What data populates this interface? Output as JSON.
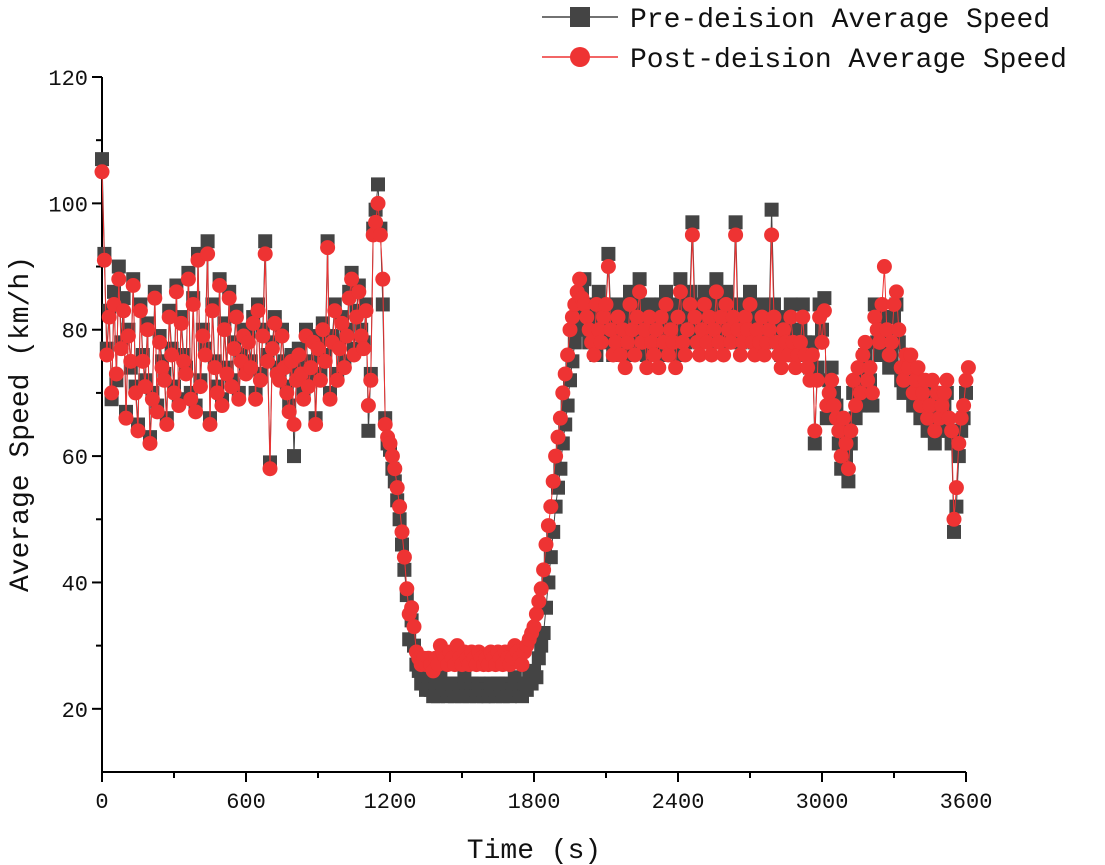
{
  "chart_data": {
    "type": "line",
    "title": "",
    "xlabel": "Time (s)",
    "ylabel": "Average Speed (km/h)",
    "xlim": [
      0,
      3600
    ],
    "ylim": [
      10,
      120
    ],
    "x_ticks": [
      0,
      600,
      1200,
      1800,
      2400,
      3000,
      3600
    ],
    "y_ticks": [
      20,
      40,
      60,
      80,
      100,
      120
    ],
    "grid": false,
    "legend_position": "top-right",
    "series": [
      {
        "name": "Pre-deision Average Speed",
        "color": "#444444",
        "marker": "square",
        "step": 10,
        "values": [
          107,
          92,
          77,
          83,
          69,
          86,
          72,
          90,
          78,
          85,
          67,
          80,
          74,
          88,
          71,
          65,
          84,
          76,
          72,
          81,
          63,
          70,
          86,
          68,
          79,
          75,
          73,
          66,
          83,
          77,
          71,
          87,
          69,
          82,
          76,
          74,
          89,
          70,
          85,
          68,
          92,
          72,
          80,
          77,
          94,
          66,
          84,
          75,
          71,
          88,
          69,
          81,
          74,
          86,
          72,
          78,
          83,
          70,
          76,
          80,
          74,
          79,
          75,
          82,
          70,
          84,
          73,
          80,
          94,
          76,
          59,
          78,
          82,
          74,
          73,
          80,
          75,
          71,
          68,
          76,
          60,
          73,
          77,
          74,
          70,
          80,
          72,
          75,
          79,
          66,
          78,
          73,
          81,
          76,
          94,
          70,
          79,
          84,
          73,
          78,
          82,
          75,
          80,
          86,
          89,
          77,
          83,
          87,
          80,
          78,
          84,
          64,
          73,
          96,
          99,
          103,
          96,
          84,
          66,
          62,
          61,
          58,
          56,
          53,
          50,
          46,
          42,
          38,
          31,
          34,
          30,
          27,
          26,
          24,
          25,
          23,
          24,
          23,
          22,
          24,
          22,
          25,
          24,
          23,
          22,
          24,
          23,
          22,
          24,
          23,
          22,
          25,
          23,
          22,
          24,
          23,
          22,
          24,
          23,
          22,
          23,
          22,
          24,
          23,
          22,
          24,
          23,
          22,
          24,
          23,
          22,
          23,
          25,
          24,
          23,
          22,
          24,
          23,
          25,
          24,
          26,
          25,
          28,
          30,
          32,
          36,
          40,
          44,
          48,
          52,
          55,
          58,
          62,
          65,
          68,
          72,
          75,
          78,
          80,
          82,
          86,
          88,
          84,
          78,
          80,
          82,
          76,
          86,
          80,
          78,
          84,
          92,
          82,
          76,
          80,
          84,
          78,
          82,
          76,
          80,
          86,
          82,
          78,
          84,
          88,
          80,
          82,
          76,
          84,
          80,
          78,
          82,
          76,
          84,
          80,
          86,
          78,
          82,
          80,
          76,
          84,
          88,
          80,
          78,
          82,
          86,
          97,
          84,
          80,
          78,
          82,
          86,
          80,
          84,
          78,
          82,
          88,
          80,
          84,
          78,
          86,
          82,
          80,
          84,
          97,
          82,
          78,
          80,
          84,
          82,
          86,
          80,
          78,
          82,
          80,
          84,
          78,
          80,
          82,
          99,
          84,
          80,
          78,
          76,
          82,
          80,
          78,
          84,
          80,
          76,
          78,
          80,
          84,
          78,
          76,
          74,
          78,
          62,
          74,
          84,
          80,
          85,
          66,
          72,
          74,
          70,
          68,
          62,
          58,
          64,
          60,
          56,
          62,
          70,
          66,
          72,
          68,
          74,
          76,
          70,
          72,
          68,
          84,
          78,
          76,
          82,
          80,
          78,
          74,
          76,
          82,
          84,
          78,
          72,
          70,
          74,
          72,
          74,
          68,
          70,
          72,
          66,
          68,
          70,
          64,
          66,
          70,
          62,
          68,
          64,
          66,
          68,
          70,
          64,
          62,
          48,
          52,
          60,
          64,
          66,
          70
        ]
      },
      {
        "name": "Post-deision Average Speed",
        "color": "#ee3333",
        "marker": "circle",
        "step": 10,
        "values": [
          105,
          91,
          76,
          82,
          70,
          84,
          73,
          88,
          77,
          83,
          66,
          79,
          75,
          87,
          70,
          64,
          83,
          75,
          71,
          80,
          62,
          69,
          85,
          67,
          78,
          74,
          72,
          65,
          82,
          76,
          70,
          86,
          68,
          81,
          75,
          73,
          88,
          69,
          84,
          67,
          91,
          71,
          79,
          76,
          92,
          65,
          83,
          74,
          70,
          87,
          68,
          80,
          73,
          85,
          71,
          77,
          82,
          69,
          75,
          79,
          73,
          78,
          74,
          81,
          69,
          83,
          72,
          79,
          92,
          75,
          58,
          77,
          81,
          73,
          72,
          79,
          74,
          70,
          67,
          75,
          65,
          72,
          76,
          73,
          69,
          79,
          71,
          74,
          78,
          65,
          77,
          72,
          80,
          75,
          93,
          69,
          78,
          83,
          72,
          77,
          81,
          74,
          79,
          85,
          88,
          76,
          82,
          86,
          79,
          77,
          83,
          68,
          72,
          95,
          97,
          100,
          95,
          88,
          65,
          63,
          62,
          60,
          58,
          55,
          52,
          48,
          44,
          39,
          35,
          36,
          33,
          29,
          28,
          27,
          28,
          27,
          28,
          27,
          26,
          28,
          27,
          30,
          29,
          28,
          27,
          29,
          28,
          27,
          30,
          28,
          27,
          29,
          28,
          27,
          29,
          28,
          27,
          29,
          28,
          27,
          28,
          27,
          29,
          28,
          27,
          29,
          28,
          27,
          29,
          28,
          27,
          28,
          30,
          29,
          28,
          27,
          29,
          30,
          31,
          32,
          33,
          35,
          37,
          39,
          42,
          46,
          49,
          52,
          56,
          60,
          63,
          66,
          70,
          73,
          76,
          80,
          82,
          84,
          86,
          88,
          85,
          84,
          82,
          80,
          78,
          76,
          84,
          80,
          78,
          82,
          84,
          90,
          80,
          76,
          78,
          82,
          76,
          80,
          74,
          78,
          84,
          80,
          76,
          82,
          86,
          78,
          80,
          74,
          82,
          78,
          76,
          80,
          74,
          82,
          78,
          84,
          76,
          80,
          78,
          74,
          82,
          86,
          78,
          76,
          80,
          84,
          95,
          82,
          78,
          76,
          80,
          84,
          78,
          82,
          76,
          80,
          86,
          78,
          82,
          76,
          84,
          80,
          78,
          82,
          95,
          80,
          76,
          78,
          82,
          80,
          84,
          78,
          76,
          80,
          78,
          82,
          76,
          78,
          80,
          95,
          82,
          78,
          76,
          74,
          80,
          78,
          76,
          82,
          78,
          74,
          76,
          78,
          82,
          76,
          74,
          72,
          76,
          64,
          72,
          82,
          78,
          83,
          68,
          70,
          72,
          68,
          66,
          64,
          60,
          66,
          62,
          58,
          64,
          72,
          68,
          74,
          70,
          76,
          78,
          72,
          74,
          70,
          82,
          80,
          78,
          84,
          90,
          80,
          76,
          78,
          84,
          86,
          80,
          74,
          72,
          76,
          74,
          76,
          70,
          72,
          74,
          68,
          70,
          72,
          66,
          68,
          72,
          64,
          70,
          66,
          68,
          70,
          72,
          66,
          64,
          50,
          55,
          62,
          66,
          68,
          72,
          74
        ]
      }
    ]
  }
}
